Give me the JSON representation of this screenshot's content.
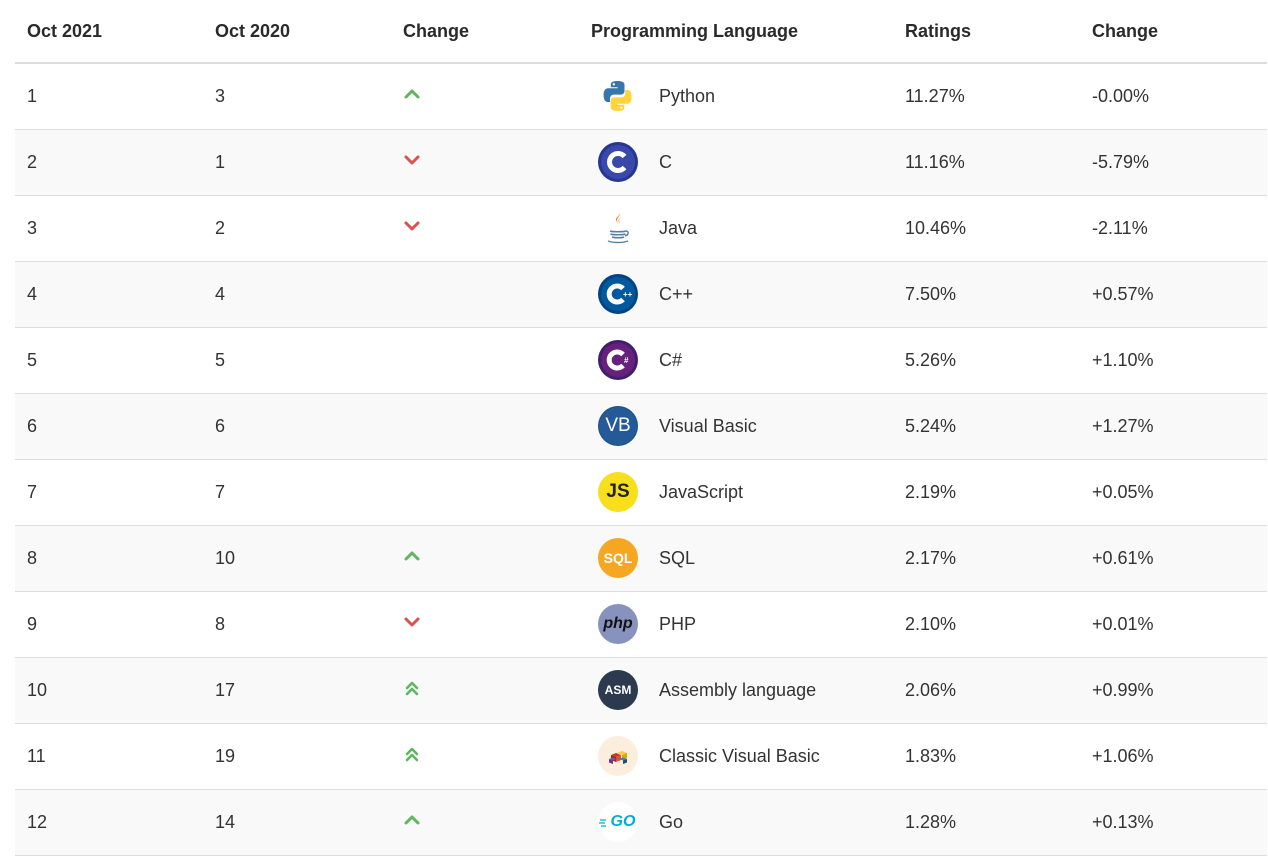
{
  "headers": {
    "current": "Oct 2021",
    "previous": "Oct 2020",
    "change": "Change",
    "language": "Programming Language",
    "ratings": "Ratings",
    "rating_change": "Change"
  },
  "rows": [
    {
      "current": "1",
      "previous": "3",
      "trend": "up",
      "logo": "python-logo",
      "language": "Python",
      "ratings": "11.27%",
      "change": "-0.00%"
    },
    {
      "current": "2",
      "previous": "1",
      "trend": "down",
      "logo": "c-logo",
      "language": "C",
      "ratings": "11.16%",
      "change": "-5.79%"
    },
    {
      "current": "3",
      "previous": "2",
      "trend": "down",
      "logo": "java-logo",
      "language": "Java",
      "ratings": "10.46%",
      "change": "-2.11%"
    },
    {
      "current": "4",
      "previous": "4",
      "trend": "none",
      "logo": "cpp-logo",
      "language": "C++",
      "ratings": "7.50%",
      "change": "+0.57%"
    },
    {
      "current": "5",
      "previous": "5",
      "trend": "none",
      "logo": "csharp-logo",
      "language": "C#",
      "ratings": "5.26%",
      "change": "+1.10%"
    },
    {
      "current": "6",
      "previous": "6",
      "trend": "none",
      "logo": "visual-basic-logo",
      "language": "Visual Basic",
      "ratings": "5.24%",
      "change": "+1.27%",
      "logo_text": "VB"
    },
    {
      "current": "7",
      "previous": "7",
      "trend": "none",
      "logo": "javascript-logo",
      "language": "JavaScript",
      "ratings": "2.19%",
      "change": "+0.05%",
      "logo_text": "JS"
    },
    {
      "current": "8",
      "previous": "10",
      "trend": "up",
      "logo": "sql-logo",
      "language": "SQL",
      "ratings": "2.17%",
      "change": "+0.61%",
      "logo_text": "SQL"
    },
    {
      "current": "9",
      "previous": "8",
      "trend": "down",
      "logo": "php-logo",
      "language": "PHP",
      "ratings": "2.10%",
      "change": "+0.01%",
      "logo_text": "php"
    },
    {
      "current": "10",
      "previous": "17",
      "trend": "up-double",
      "logo": "assembly-logo",
      "language": "Assembly language",
      "ratings": "2.06%",
      "change": "+0.99%",
      "logo_text": "ASM"
    },
    {
      "current": "11",
      "previous": "19",
      "trend": "up-double",
      "logo": "classic-visual-basic-logo",
      "language": "Classic Visual Basic",
      "ratings": "1.83%",
      "change": "+1.06%"
    },
    {
      "current": "12",
      "previous": "14",
      "trend": "up",
      "logo": "go-logo",
      "language": "Go",
      "ratings": "1.28%",
      "change": "+0.13%",
      "logo_text": "GO"
    }
  ],
  "colors": {
    "up": "#5cb85c",
    "down": "#d9534f",
    "border": "#dddddd",
    "stripe": "#f9f9f9",
    "text": "#333333"
  }
}
